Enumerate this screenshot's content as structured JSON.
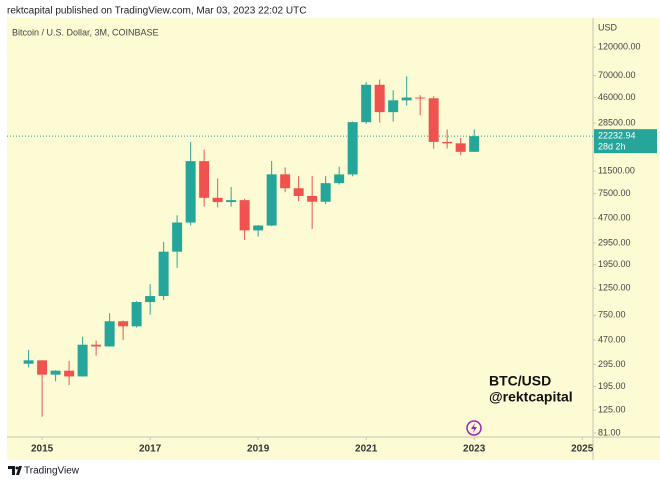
{
  "header": "rektcapital published on TradingView.com, Mar 03, 2023 22:02 UTC",
  "footer": "TradingView",
  "chart_data": {
    "type": "candlestick",
    "title": "Bitcoin / U.S. Dollar, 3M, COINBASE",
    "y_unit": "USD",
    "log_scale": true,
    "up_color": "#26a69a",
    "down_color": "#ef5350",
    "countdown": "28d 2h",
    "watermark": [
      "BTC/USD",
      "@rektcapital"
    ],
    "x": [
      2014.75,
      2015,
      2015.25,
      2015.5,
      2015.75,
      2016,
      2016.25,
      2016.5,
      2016.75,
      2017,
      2017.25,
      2017.5,
      2017.75,
      2018,
      2018.25,
      2018.5,
      2018.75,
      2019,
      2019.25,
      2019.5,
      2019.75,
      2020,
      2020.25,
      2020.5,
      2020.75,
      2021,
      2021.25,
      2021.5,
      2021.75,
      2022,
      2022.25,
      2022.5,
      2022.75,
      2023
    ],
    "open": [
      300,
      320,
      244,
      263,
      236,
      430,
      416,
      670,
      609,
      964,
      1080,
      2500,
      4340,
      13860,
      6930,
      6390,
      6630,
      3740,
      4100,
      10800,
      8300,
      7170,
      6430,
      9140,
      10780,
      28990,
      58790,
      35040,
      43820,
      46200,
      45540,
      19940,
      19420,
      16530
    ],
    "high": [
      390,
      320,
      265,
      317,
      500,
      465,
      780,
      680,
      980,
      1350,
      3000,
      4980,
      19890,
      17250,
      9990,
      8500,
      6800,
      4140,
      13880,
      12330,
      10500,
      10500,
      10480,
      12480,
      29300,
      61790,
      64900,
      53000,
      69000,
      48240,
      47450,
      25210,
      21480,
      25250
    ],
    "low": [
      280,
      110,
      215,
      200,
      235,
      350,
      416,
      470,
      595,
      760,
      1000,
      1840,
      4100,
      5870,
      5780,
      5860,
      3120,
      3330,
      4050,
      7700,
      6520,
      3850,
      6150,
      8900,
      10400,
      28130,
      28800,
      29280,
      39600,
      32950,
      17570,
      17590,
      15480,
      16500
    ],
    "close": [
      320,
      244,
      263,
      236,
      430,
      416,
      670,
      609,
      964,
      1080,
      2500,
      4340,
      13860,
      6930,
      6390,
      6630,
      3740,
      4100,
      10800,
      8300,
      7170,
      6430,
      9140,
      10780,
      28990,
      58790,
      35040,
      43820,
      46200,
      45540,
      19940,
      19420,
      16530,
      22232.94
    ],
    "xlim": [
      2014.35,
      2025.2
    ],
    "xticks": [
      2015,
      2017,
      2019,
      2021,
      2023,
      2025
    ],
    "ylim": [
      75,
      208000
    ],
    "yticks": [
      {
        "value": 120000,
        "label": "120000.00"
      },
      {
        "value": 70000,
        "label": "70000.00"
      },
      {
        "value": 46000,
        "label": "46000.00"
      },
      {
        "value": 28500,
        "label": "28500.00"
      },
      {
        "value": 11500,
        "label": "11500.00"
      },
      {
        "value": 7500,
        "label": "7500.00"
      },
      {
        "value": 4700,
        "label": "4700.00"
      },
      {
        "value": 2950,
        "label": "2950.00"
      },
      {
        "value": 1950,
        "label": "1950.00"
      },
      {
        "value": 1250,
        "label": "1250.00"
      },
      {
        "value": 750,
        "label": "750.00"
      },
      {
        "value": 470,
        "label": "470.00"
      },
      {
        "value": 295,
        "label": "295.00"
      },
      {
        "value": 195,
        "label": "195.00"
      },
      {
        "value": 125,
        "label": "125.00"
      },
      {
        "value": 81,
        "label": "81.00"
      }
    ]
  }
}
